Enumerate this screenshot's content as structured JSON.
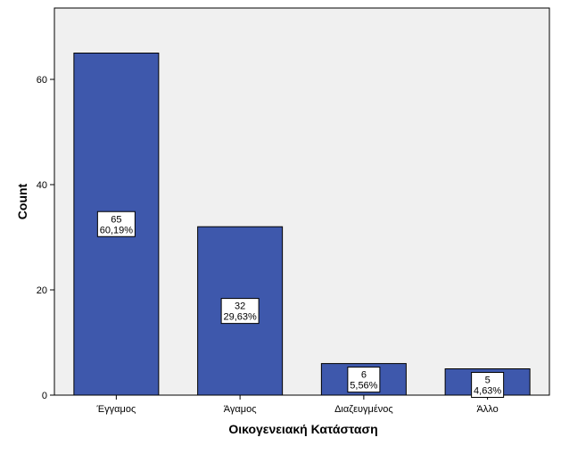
{
  "chart_data": {
    "type": "bar",
    "categories": [
      "Έγγαμος",
      "Άγαμος",
      "Διαζευγμένος",
      "Άλλο"
    ],
    "values": [
      65,
      32,
      6,
      5
    ],
    "percentages": [
      "60,19%",
      "29,63%",
      "5,56%",
      "4,63%"
    ],
    "xlabel": "Οικογενειακή Κατάσταση",
    "ylabel": "Count",
    "ylim": [
      0,
      75
    ],
    "yticks": [
      0,
      20,
      40,
      60
    ],
    "grid": false,
    "colors": {
      "plot_background": "#f0f0f0",
      "bar_fill": "#3e58ac",
      "bar_stroke": "#000000",
      "label_box_fill": "#ffffff"
    }
  }
}
